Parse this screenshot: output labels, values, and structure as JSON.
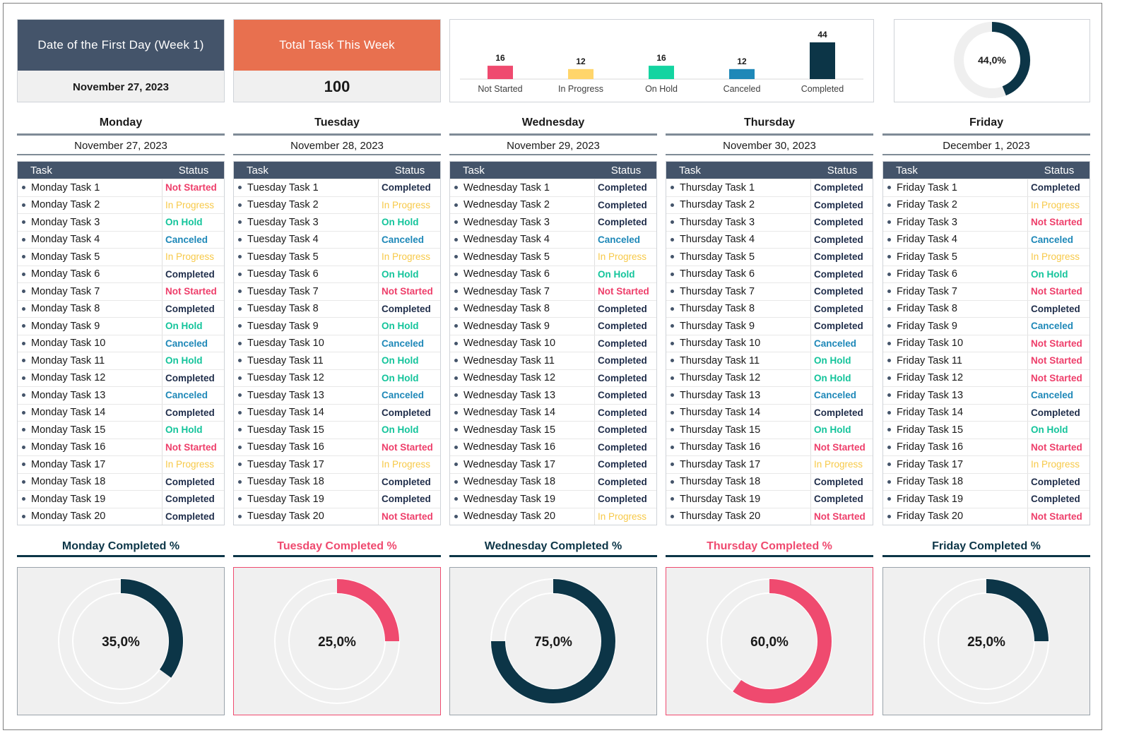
{
  "kpis": {
    "first_day_label": "Date of the First Day (Week 1)",
    "first_day_value": "November 27, 2023",
    "total_label": "Total Task This Week",
    "total_value": "100"
  },
  "chart_data": [
    {
      "type": "bar",
      "categories": [
        "Not Started",
        "In Progress",
        "On Hold",
        "Canceled",
        "Completed"
      ],
      "values": [
        16,
        12,
        16,
        12,
        44
      ],
      "colors": [
        "#ef4a6f",
        "#ffd56b",
        "#14d4a1",
        "#1e88b8",
        "#0c3547"
      ],
      "ylim": [
        0,
        44
      ]
    },
    {
      "type": "pie",
      "values": [
        44,
        56
      ],
      "center_label": "44,0%",
      "colors": [
        "#0c3547",
        "#efefef"
      ]
    }
  ],
  "table_headers": {
    "task": "Task",
    "status": "Status"
  },
  "days": [
    {
      "name": "Monday",
      "date": "November 27, 2023",
      "completed_title": "Monday Completed %",
      "completed_label": "35,0%",
      "completed_value": 35,
      "accent": "#0c3547",
      "tasks": [
        [
          "Monday Task 1",
          "Not Started"
        ],
        [
          "Monday Task 2",
          "In Progress"
        ],
        [
          "Monday Task 3",
          "On Hold"
        ],
        [
          "Monday Task 4",
          "Canceled"
        ],
        [
          "Monday Task 5",
          "In Progress"
        ],
        [
          "Monday Task 6",
          "Completed"
        ],
        [
          "Monday Task 7",
          "Not Started"
        ],
        [
          "Monday Task 8",
          "Completed"
        ],
        [
          "Monday Task 9",
          "On Hold"
        ],
        [
          "Monday Task 10",
          "Canceled"
        ],
        [
          "Monday Task 11",
          "On Hold"
        ],
        [
          "Monday Task 12",
          "Completed"
        ],
        [
          "Monday Task 13",
          "Canceled"
        ],
        [
          "Monday Task 14",
          "Completed"
        ],
        [
          "Monday Task 15",
          "On Hold"
        ],
        [
          "Monday Task 16",
          "Not Started"
        ],
        [
          "Monday Task 17",
          "In Progress"
        ],
        [
          "Monday Task 18",
          "Completed"
        ],
        [
          "Monday Task 19",
          "Completed"
        ],
        [
          "Monday Task 20",
          "Completed"
        ]
      ]
    },
    {
      "name": "Tuesday",
      "date": "November 28, 2023",
      "completed_title": "Tuesday Completed %",
      "completed_label": "25,0%",
      "completed_value": 25,
      "accent": "#ef4a6f",
      "tasks": [
        [
          "Tuesday Task 1",
          "Completed"
        ],
        [
          "Tuesday Task 2",
          "In Progress"
        ],
        [
          "Tuesday Task 3",
          "On Hold"
        ],
        [
          "Tuesday Task 4",
          "Canceled"
        ],
        [
          "Tuesday Task 5",
          "In Progress"
        ],
        [
          "Tuesday Task 6",
          "On Hold"
        ],
        [
          "Tuesday Task 7",
          "Not Started"
        ],
        [
          "Tuesday Task 8",
          "Completed"
        ],
        [
          "Tuesday Task 9",
          "On Hold"
        ],
        [
          "Tuesday Task 10",
          "Canceled"
        ],
        [
          "Tuesday Task 11",
          "On Hold"
        ],
        [
          "Tuesday Task 12",
          "On Hold"
        ],
        [
          "Tuesday Task 13",
          "Canceled"
        ],
        [
          "Tuesday Task 14",
          "Completed"
        ],
        [
          "Tuesday Task 15",
          "On Hold"
        ],
        [
          "Tuesday Task 16",
          "Not Started"
        ],
        [
          "Tuesday Task 17",
          "In Progress"
        ],
        [
          "Tuesday Task 18",
          "Completed"
        ],
        [
          "Tuesday Task 19",
          "Completed"
        ],
        [
          "Tuesday Task 20",
          "Not Started"
        ]
      ]
    },
    {
      "name": "Wednesday",
      "date": "November 29, 2023",
      "completed_title": "Wednesday Completed %",
      "completed_label": "75,0%",
      "completed_value": 75,
      "accent": "#0c3547",
      "tasks": [
        [
          "Wednesday Task 1",
          "Completed"
        ],
        [
          "Wednesday Task 2",
          "Completed"
        ],
        [
          "Wednesday Task 3",
          "Completed"
        ],
        [
          "Wednesday Task 4",
          "Canceled"
        ],
        [
          "Wednesday Task 5",
          "In Progress"
        ],
        [
          "Wednesday Task 6",
          "On Hold"
        ],
        [
          "Wednesday Task 7",
          "Not Started"
        ],
        [
          "Wednesday Task 8",
          "Completed"
        ],
        [
          "Wednesday Task 9",
          "Completed"
        ],
        [
          "Wednesday Task 10",
          "Completed"
        ],
        [
          "Wednesday Task 11",
          "Completed"
        ],
        [
          "Wednesday Task 12",
          "Completed"
        ],
        [
          "Wednesday Task 13",
          "Completed"
        ],
        [
          "Wednesday Task 14",
          "Completed"
        ],
        [
          "Wednesday Task 15",
          "Completed"
        ],
        [
          "Wednesday Task 16",
          "Completed"
        ],
        [
          "Wednesday Task 17",
          "Completed"
        ],
        [
          "Wednesday Task 18",
          "Completed"
        ],
        [
          "Wednesday Task 19",
          "Completed"
        ],
        [
          "Wednesday Task 20",
          "In Progress"
        ]
      ]
    },
    {
      "name": "Thursday",
      "date": "November 30, 2023",
      "completed_title": "Thursday Completed %",
      "completed_label": "60,0%",
      "completed_value": 60,
      "accent": "#ef4a6f",
      "tasks": [
        [
          "Thursday Task 1",
          "Completed"
        ],
        [
          "Thursday Task 2",
          "Completed"
        ],
        [
          "Thursday Task 3",
          "Completed"
        ],
        [
          "Thursday Task 4",
          "Completed"
        ],
        [
          "Thursday Task 5",
          "Completed"
        ],
        [
          "Thursday Task 6",
          "Completed"
        ],
        [
          "Thursday Task 7",
          "Completed"
        ],
        [
          "Thursday Task 8",
          "Completed"
        ],
        [
          "Thursday Task 9",
          "Completed"
        ],
        [
          "Thursday Task 10",
          "Canceled"
        ],
        [
          "Thursday Task 11",
          "On Hold"
        ],
        [
          "Thursday Task 12",
          "On Hold"
        ],
        [
          "Thursday Task 13",
          "Canceled"
        ],
        [
          "Thursday Task 14",
          "Completed"
        ],
        [
          "Thursday Task 15",
          "On Hold"
        ],
        [
          "Thursday Task 16",
          "Not Started"
        ],
        [
          "Thursday Task 17",
          "In Progress"
        ],
        [
          "Thursday Task 18",
          "Completed"
        ],
        [
          "Thursday Task 19",
          "Completed"
        ],
        [
          "Thursday Task 20",
          "Not Started"
        ]
      ]
    },
    {
      "name": "Friday",
      "date": "December 1, 2023",
      "completed_title": "Friday Completed %",
      "completed_label": "25,0%",
      "completed_value": 25,
      "accent": "#0c3547",
      "tasks": [
        [
          "Friday Task 1",
          "Completed"
        ],
        [
          "Friday Task 2",
          "In Progress"
        ],
        [
          "Friday Task 3",
          "Not Started"
        ],
        [
          "Friday Task 4",
          "Canceled"
        ],
        [
          "Friday Task 5",
          "In Progress"
        ],
        [
          "Friday Task 6",
          "On Hold"
        ],
        [
          "Friday Task 7",
          "Not Started"
        ],
        [
          "Friday Task 8",
          "Completed"
        ],
        [
          "Friday Task 9",
          "Canceled"
        ],
        [
          "Friday Task 10",
          "Not Started"
        ],
        [
          "Friday Task 11",
          "Not Started"
        ],
        [
          "Friday Task 12",
          "Not Started"
        ],
        [
          "Friday Task 13",
          "Canceled"
        ],
        [
          "Friday Task 14",
          "Completed"
        ],
        [
          "Friday Task 15",
          "On Hold"
        ],
        [
          "Friday Task 16",
          "Not Started"
        ],
        [
          "Friday Task 17",
          "In Progress"
        ],
        [
          "Friday Task 18",
          "Completed"
        ],
        [
          "Friday Task 19",
          "Completed"
        ],
        [
          "Friday Task 20",
          "Not Started"
        ]
      ]
    }
  ]
}
